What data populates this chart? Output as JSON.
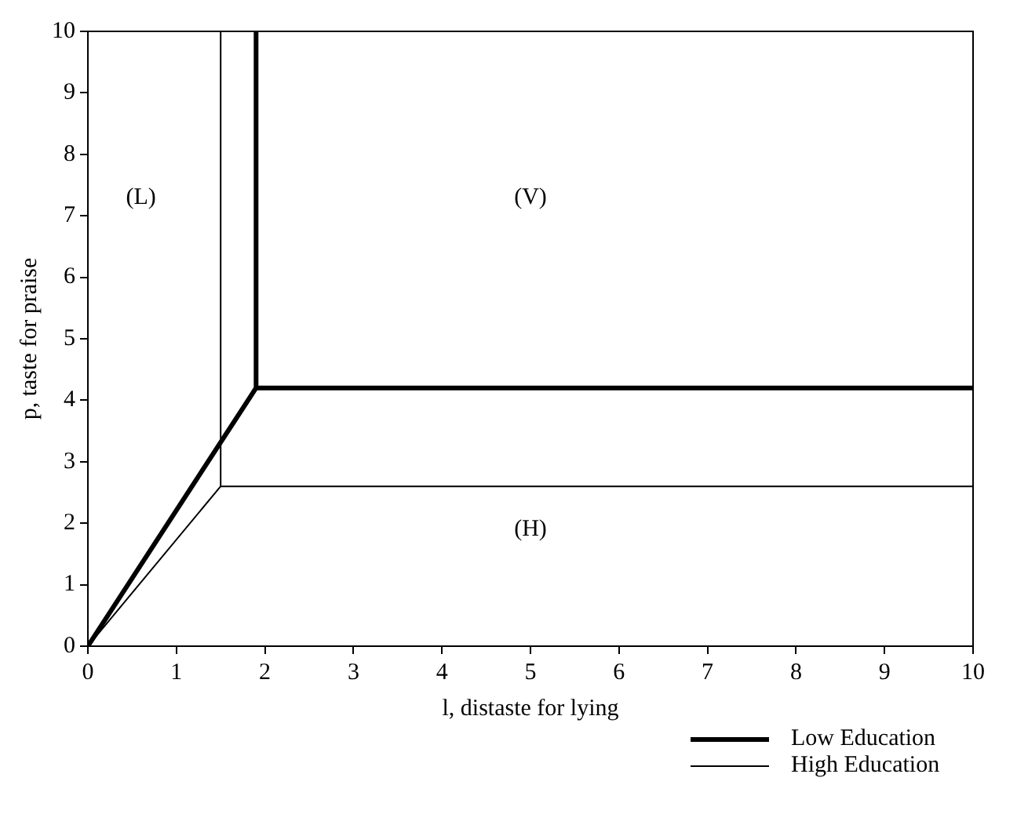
{
  "chart_data": {
    "type": "line",
    "xlabel": "l, distaste for lying",
    "ylabel": "p, taste for praise",
    "xlim": [
      0,
      10
    ],
    "ylim": [
      0,
      10
    ],
    "xticks": [
      0,
      1,
      2,
      3,
      4,
      5,
      6,
      7,
      8,
      9,
      10
    ],
    "yticks": [
      0,
      1,
      2,
      3,
      4,
      5,
      6,
      7,
      8,
      9,
      10
    ],
    "series": [
      {
        "name": "Low Education",
        "color": "#000000",
        "x": [
          10,
          1.9,
          1.9,
          null,
          1.9,
          0
        ],
        "values": [
          4.2,
          4.2,
          10,
          null,
          4.2,
          0
        ]
      },
      {
        "name": "High Education",
        "color": "#000000",
        "x": [
          10,
          1.5,
          1.5,
          null,
          1.5,
          0
        ],
        "values": [
          2.6,
          2.6,
          10,
          null,
          2.6,
          0
        ]
      }
    ],
    "annotations": [
      "(L)",
      "(V)",
      "(H)"
    ],
    "grid": false,
    "legend": "bottom right",
    "marker": "none",
    "line_style": "solid"
  }
}
